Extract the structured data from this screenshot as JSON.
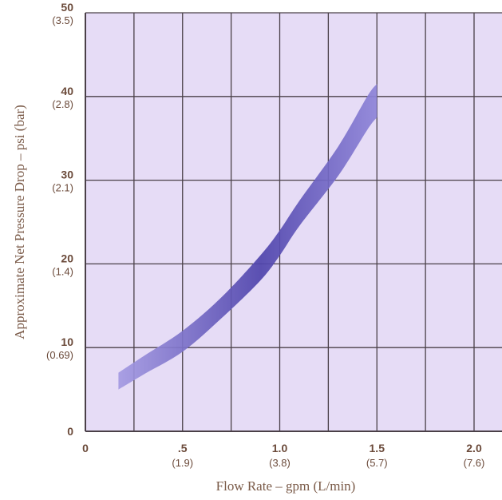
{
  "chart_data": {
    "type": "area",
    "title": "",
    "xlabel": "Flow Rate – gpm (L/min)",
    "ylabel": "Approximate Net Pressure Drop – psi (bar)",
    "xlim": [
      0,
      2.0
    ],
    "ylim": [
      0,
      50
    ],
    "grid": true,
    "x_ticks": [
      {
        "value": 0,
        "label": "0",
        "sub": ""
      },
      {
        "value": 0.5,
        "label": ".5",
        "sub": "(1.9)"
      },
      {
        "value": 1.0,
        "label": "1.0",
        "sub": "(3.8)"
      },
      {
        "value": 1.5,
        "label": "1.5",
        "sub": "(5.7)"
      },
      {
        "value": 2.0,
        "label": "2.0",
        "sub": "(7.6)"
      }
    ],
    "y_ticks": [
      {
        "value": 0,
        "label": "0",
        "sub": ""
      },
      {
        "value": 10,
        "label": "10",
        "sub": "(0.69)"
      },
      {
        "value": 20,
        "label": "20",
        "sub": "(1.4)"
      },
      {
        "value": 30,
        "label": "30",
        "sub": "(2.1)"
      },
      {
        "value": 40,
        "label": "40",
        "sub": "(2.8)"
      },
      {
        "value": 50,
        "label": "50",
        "sub": "(3.5)"
      }
    ],
    "series": [
      {
        "x": [
          0.17,
          0.3,
          0.5,
          0.7,
          0.9,
          1.0,
          1.1,
          1.3,
          1.45,
          1.5
        ],
        "y_low": [
          5,
          6.8,
          9.5,
          13.5,
          18,
          21,
          24.5,
          30.5,
          36,
          37.5
        ],
        "y_high": [
          7,
          9,
          12,
          16,
          21,
          24,
          27.5,
          34,
          40,
          41.5
        ]
      }
    ],
    "colors": {
      "plot_bg": "#e6dcf6",
      "grid": "#4a4048",
      "band_edge": "#9a8ee0",
      "band_core": "#4f44ac"
    }
  }
}
